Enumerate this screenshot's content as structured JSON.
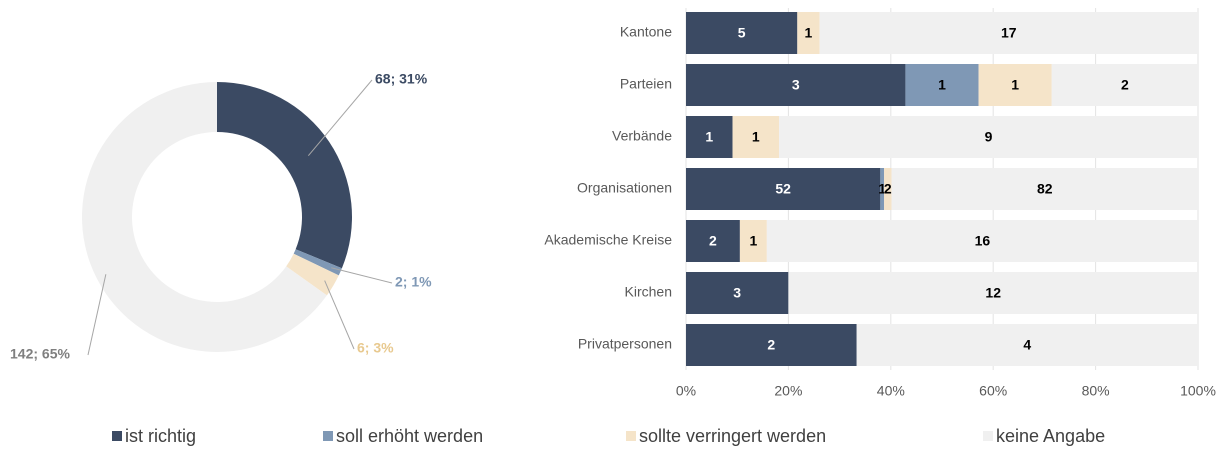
{
  "chart_data": [
    {
      "type": "pie",
      "values": [
        68,
        2,
        6,
        142
      ],
      "value_labels": [
        "68; 31%",
        "2; 1%",
        "6; 3%",
        "142; 65%"
      ],
      "colors": [
        "#3b4a63",
        "#7f98b5",
        "#f5e4c9",
        "#f0f0f0"
      ],
      "donut": true
    },
    {
      "type": "bar",
      "orientation": "horizontal",
      "stacked": "percent",
      "categories": [
        "Kantone",
        "Parteien",
        "Verbände",
        "Organisationen",
        "Akademische Kreise",
        "Kirchen",
        "Privatpersonen"
      ],
      "series": [
        {
          "name": "ist richtig",
          "color": "#3b4a63",
          "values": [
            5,
            3,
            1,
            52,
            2,
            3,
            2
          ]
        },
        {
          "name": "soll erhöht werden",
          "color": "#7f98b5",
          "values": [
            0,
            1,
            0,
            1,
            0,
            0,
            0
          ]
        },
        {
          "name": "sollte verringert werden",
          "color": "#f5e4c9",
          "values": [
            1,
            1,
            1,
            2,
            1,
            0,
            0
          ]
        },
        {
          "name": "keine Angabe",
          "color": "#f0f0f0",
          "values": [
            17,
            2,
            9,
            82,
            16,
            12,
            4
          ]
        }
      ],
      "xlim": [
        0,
        100
      ],
      "xticks": [
        {
          "value": 0,
          "label": "0%"
        },
        {
          "value": 20,
          "label": "20%"
        },
        {
          "value": 40,
          "label": "40%"
        },
        {
          "value": 60,
          "label": "60%"
        },
        {
          "value": 80,
          "label": "80%"
        },
        {
          "value": 100,
          "label": "100%"
        }
      ],
      "grid": true,
      "legend": "bottom"
    }
  ]
}
